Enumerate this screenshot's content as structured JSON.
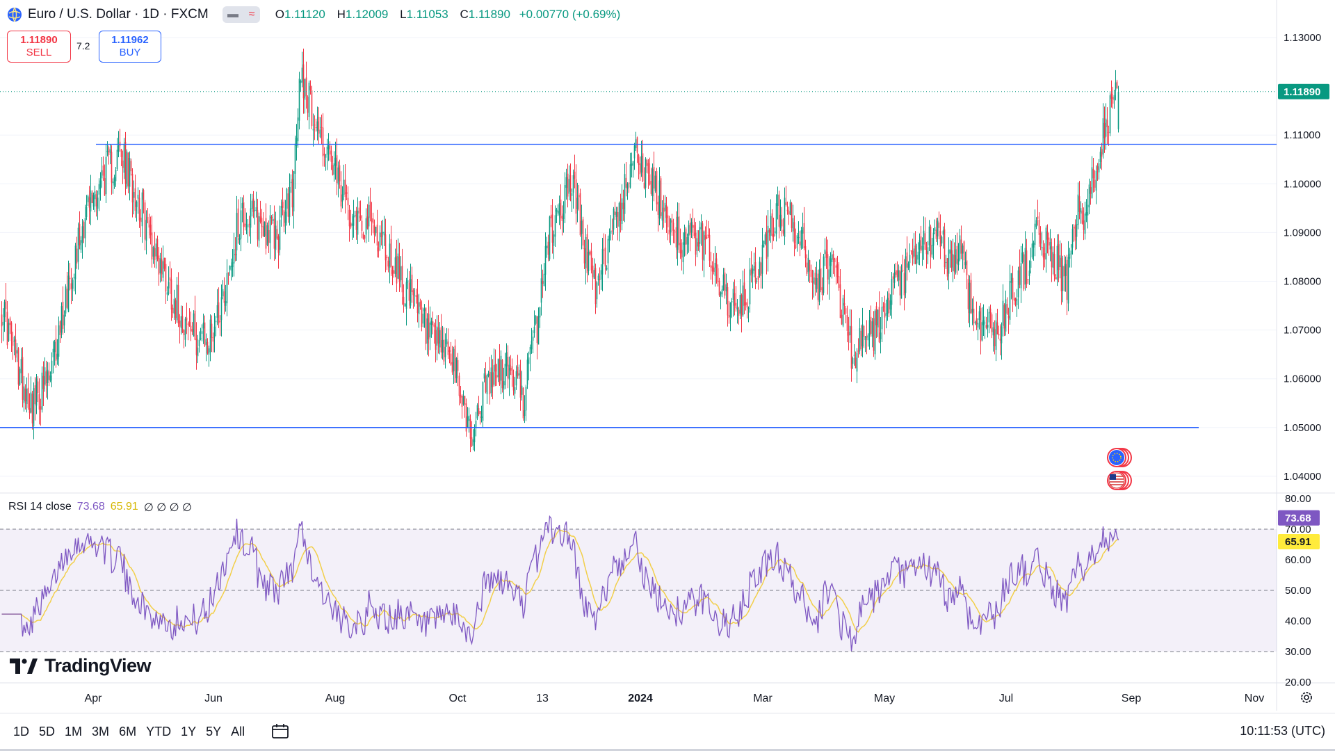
{
  "header": {
    "symbol_title": "Euro / U.S. Dollar · 1D · FXCM",
    "ohlc": {
      "o_label": "O",
      "o": "1.11120",
      "h_label": "H",
      "h": "1.12009",
      "l_label": "L",
      "l": "1.11053",
      "c_label": "C",
      "c": "1.11890",
      "change": "+0.00770 (+0.69%)"
    },
    "toggle_glyph": "≈"
  },
  "trade": {
    "sell_price": "1.11890",
    "sell_label": "SELL",
    "spread": "7.2",
    "buy_price": "1.11962",
    "buy_label": "BUY"
  },
  "rsi": {
    "label": "RSI 14 close",
    "value": "73.68",
    "ma_value": "65.91",
    "extra": "∅ ∅ ∅ ∅"
  },
  "brand": "TradingView",
  "bottom_bar": {
    "ranges": [
      "1D",
      "5D",
      "1M",
      "3M",
      "6M",
      "YTD",
      "1Y",
      "5Y",
      "All"
    ],
    "clock": "10:11:53 (UTC)"
  },
  "colors": {
    "up": "#089981",
    "down": "#f23645",
    "line": "#2962ff",
    "rsi": "#7e57c2",
    "rsi_ma": "#f2cf4a",
    "band": "#7e57c2"
  },
  "icons": [
    "globe-icon",
    "euro-flag-icon",
    "us-flag-icon",
    "calendar-icon",
    "gear-icon"
  ],
  "chart_data": [
    {
      "type": "candlestick",
      "title": "Euro / U.S. Dollar · 1D · FXCM",
      "x_ticks": [
        "Apr",
        "Jun",
        "Aug",
        "Oct",
        "13",
        "2024",
        "Mar",
        "May",
        "Jul",
        "Sep",
        "Nov"
      ],
      "y_ticks": [
        "1.13000",
        "1.11890",
        "1.11000",
        "1.10000",
        "1.09000",
        "1.08000",
        "1.07000",
        "1.06000",
        "1.05000",
        "1.04000"
      ],
      "ylim": [
        1.036,
        1.135
      ],
      "last_price": "1.11890",
      "horizontal_lines": [
        1.1081,
        1.05
      ],
      "anchors": [
        [
          0,
          1.075
        ],
        [
          12,
          1.062
        ],
        [
          22,
          1.055
        ],
        [
          35,
          1.06
        ],
        [
          48,
          1.08
        ],
        [
          60,
          1.094
        ],
        [
          72,
          1.101
        ],
        [
          85,
          1.106
        ],
        [
          97,
          1.098
        ],
        [
          108,
          1.088
        ],
        [
          122,
          1.078
        ],
        [
          135,
          1.07
        ],
        [
          148,
          1.067
        ],
        [
          160,
          1.078
        ],
        [
          172,
          1.094
        ],
        [
          185,
          1.092
        ],
        [
          198,
          1.089
        ],
        [
          210,
          1.1
        ],
        [
          215,
          1.124
        ],
        [
          222,
          1.116
        ],
        [
          232,
          1.108
        ],
        [
          245,
          1.097
        ],
        [
          258,
          1.093
        ],
        [
          270,
          1.09
        ],
        [
          285,
          1.082
        ],
        [
          298,
          1.074
        ],
        [
          310,
          1.067
        ],
        [
          322,
          1.065
        ],
        [
          332,
          1.055
        ],
        [
          338,
          1.048
        ],
        [
          345,
          1.056
        ],
        [
          355,
          1.061
        ],
        [
          365,
          1.062
        ],
        [
          375,
          1.056
        ],
        [
          385,
          1.071
        ],
        [
          392,
          1.088
        ],
        [
          400,
          1.094
        ],
        [
          410,
          1.101
        ],
        [
          420,
          1.086
        ],
        [
          428,
          1.077
        ],
        [
          438,
          1.091
        ],
        [
          448,
          1.098
        ],
        [
          455,
          1.11
        ],
        [
          460,
          1.103
        ],
        [
          470,
          1.098
        ],
        [
          480,
          1.093
        ],
        [
          490,
          1.088
        ],
        [
          500,
          1.089
        ],
        [
          510,
          1.086
        ],
        [
          520,
          1.077
        ],
        [
          530,
          1.073
        ],
        [
          540,
          1.08
        ],
        [
          550,
          1.087
        ],
        [
          558,
          1.095
        ],
        [
          568,
          1.092
        ],
        [
          578,
          1.086
        ],
        [
          588,
          1.079
        ],
        [
          596,
          1.086
        ],
        [
          604,
          1.075
        ],
        [
          612,
          1.065
        ],
        [
          622,
          1.068
        ],
        [
          632,
          1.071
        ],
        [
          642,
          1.078
        ],
        [
          652,
          1.082
        ],
        [
          662,
          1.087
        ],
        [
          672,
          1.089
        ],
        [
          682,
          1.084
        ],
        [
          690,
          1.087
        ],
        [
          698,
          1.073
        ],
        [
          708,
          1.071
        ],
        [
          716,
          1.069
        ],
        [
          726,
          1.078
        ],
        [
          736,
          1.083
        ],
        [
          746,
          1.09
        ],
        [
          756,
          1.085
        ],
        [
          766,
          1.08
        ],
        [
          774,
          1.094
        ],
        [
          780,
          1.092
        ],
        [
          788,
          1.107
        ],
        [
          796,
          1.114
        ],
        [
          803,
          1.119
        ]
      ]
    },
    {
      "type": "line",
      "title": "RSI 14 close",
      "y_ticks": [
        "80.00",
        "70.00",
        "60.00",
        "50.00",
        "40.00",
        "30.00",
        "20.00"
      ],
      "band": [
        30,
        70
      ],
      "ylim": [
        20,
        80
      ],
      "series": [
        {
          "name": "RSI",
          "last": 73.68
        },
        {
          "name": "RSI-based MA",
          "last": 65.91
        }
      ]
    }
  ]
}
